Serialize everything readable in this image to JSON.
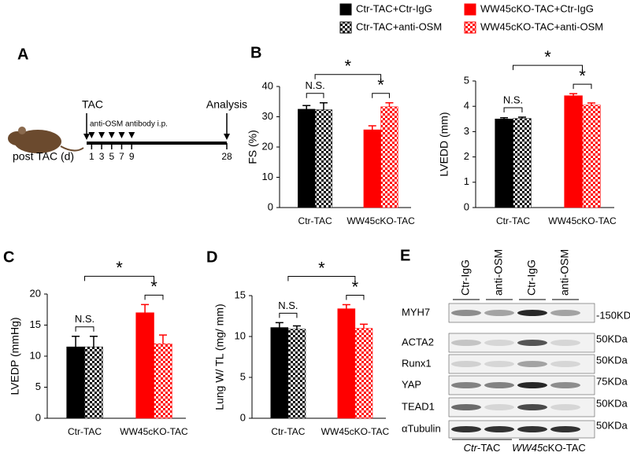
{
  "panel_labels": [
    "A",
    "B",
    "C",
    "D",
    "E"
  ],
  "legend": [
    {
      "name": "Ctr-TAC+Ctr-IgG",
      "color": "#000000",
      "pattern": "solid"
    },
    {
      "name": "Ctr-TAC+anti-OSM",
      "color": "#000000",
      "pattern": "checker"
    },
    {
      "name": "WW45cKO-TAC+Ctr-IgG",
      "color": "#ff0000",
      "pattern": "solid"
    },
    {
      "name": "WW45cKO-TAC+anti-OSM",
      "color": "#ff0000",
      "pattern": "checker"
    }
  ],
  "timeline": {
    "start_label": "TAC",
    "injection_label": "anti-OSM antibody i.p.",
    "end_label": "Analysis",
    "axis_label": "post TAC (d)",
    "injection_days": [
      1,
      3,
      5,
      7,
      9
    ],
    "end_day": 28
  },
  "chart_data": [
    {
      "type": "bar",
      "y_label": "FS (%)",
      "categories": [
        "Ctr-TAC",
        "WW45cKO-TAC"
      ],
      "ylim": [
        0,
        40
      ],
      "yticks": [
        0,
        10,
        20,
        30,
        40
      ],
      "series": [
        {
          "values": [
            32.5,
            null
          ],
          "errors": [
            1.2,
            null
          ]
        },
        {
          "values": [
            32.3,
            null
          ],
          "errors": [
            2.3,
            null
          ]
        },
        {
          "values": [
            null,
            25.7
          ],
          "errors": [
            null,
            1.3
          ]
        },
        {
          "values": [
            null,
            33.3
          ],
          "errors": [
            null,
            1.3
          ]
        }
      ],
      "comparisons": [
        "N.S.",
        "*",
        "*"
      ]
    },
    {
      "type": "bar",
      "y_label": "LVEDD (mm)",
      "categories": [
        "Ctr-TAC",
        "WW45cKO-TAC"
      ],
      "ylim": [
        0,
        5
      ],
      "yticks": [
        0,
        1,
        2,
        3,
        4,
        5
      ],
      "series": [
        {
          "values": [
            3.5,
            null
          ],
          "errors": [
            0.05,
            null
          ]
        },
        {
          "values": [
            3.52,
            null
          ],
          "errors": [
            0.05,
            null
          ]
        },
        {
          "values": [
            null,
            4.42
          ],
          "errors": [
            null,
            0.08
          ]
        },
        {
          "values": [
            null,
            4.05
          ],
          "errors": [
            null,
            0.08
          ]
        }
      ],
      "comparisons": [
        "N.S.",
        "*",
        "*"
      ]
    },
    {
      "type": "bar",
      "y_label": "LVEDP (mmHg)",
      "categories": [
        "Ctr-TAC",
        "WW45cKO-TAC"
      ],
      "ylim": [
        0,
        20
      ],
      "yticks": [
        0,
        5,
        10,
        15,
        20
      ],
      "series": [
        {
          "values": [
            11.5,
            null
          ],
          "errors": [
            1.7,
            null
          ]
        },
        {
          "values": [
            11.5,
            null
          ],
          "errors": [
            1.7,
            null
          ]
        },
        {
          "values": [
            null,
            17
          ],
          "errors": [
            null,
            1.3
          ]
        },
        {
          "values": [
            null,
            12
          ],
          "errors": [
            null,
            1.4
          ]
        }
      ],
      "comparisons": [
        "N.S.",
        "*",
        "*"
      ]
    },
    {
      "type": "bar",
      "y_label": "Lung W/ TL (mg/ mm)",
      "categories": [
        "Ctr-TAC",
        "WW45cKO-TAC"
      ],
      "ylim": [
        0,
        15
      ],
      "yticks": [
        0,
        5,
        10,
        15
      ],
      "series": [
        {
          "values": [
            11.1,
            null
          ],
          "errors": [
            0.6,
            null
          ]
        },
        {
          "values": [
            10.9,
            null
          ],
          "errors": [
            0.4,
            null
          ]
        },
        {
          "values": [
            null,
            13.4
          ],
          "errors": [
            null,
            0.5
          ]
        },
        {
          "values": [
            null,
            11
          ],
          "errors": [
            null,
            0.5
          ]
        }
      ],
      "comparisons": [
        "N.S.",
        "*",
        "*"
      ]
    }
  ],
  "blot": {
    "lanes": [
      "Ctr-IgG",
      "anti-OSM",
      "Ctr-IgG",
      "anti-OSM"
    ],
    "rows": [
      {
        "protein": "MYH7",
        "marker": "-150KDa"
      },
      {
        "protein": "ACTA2",
        "marker": "50KDa"
      },
      {
        "protein": "Runx1",
        "marker": "50KDa"
      },
      {
        "protein": "YAP",
        "marker": "75KDa"
      },
      {
        "protein": "TEAD1",
        "marker": "50KDa"
      },
      {
        "protein": "αTubulin",
        "marker": "50KDa"
      }
    ],
    "groups": [
      [
        "Ctr",
        "-TAC"
      ],
      [
        "WW45",
        "cKO-TAC"
      ]
    ]
  }
}
